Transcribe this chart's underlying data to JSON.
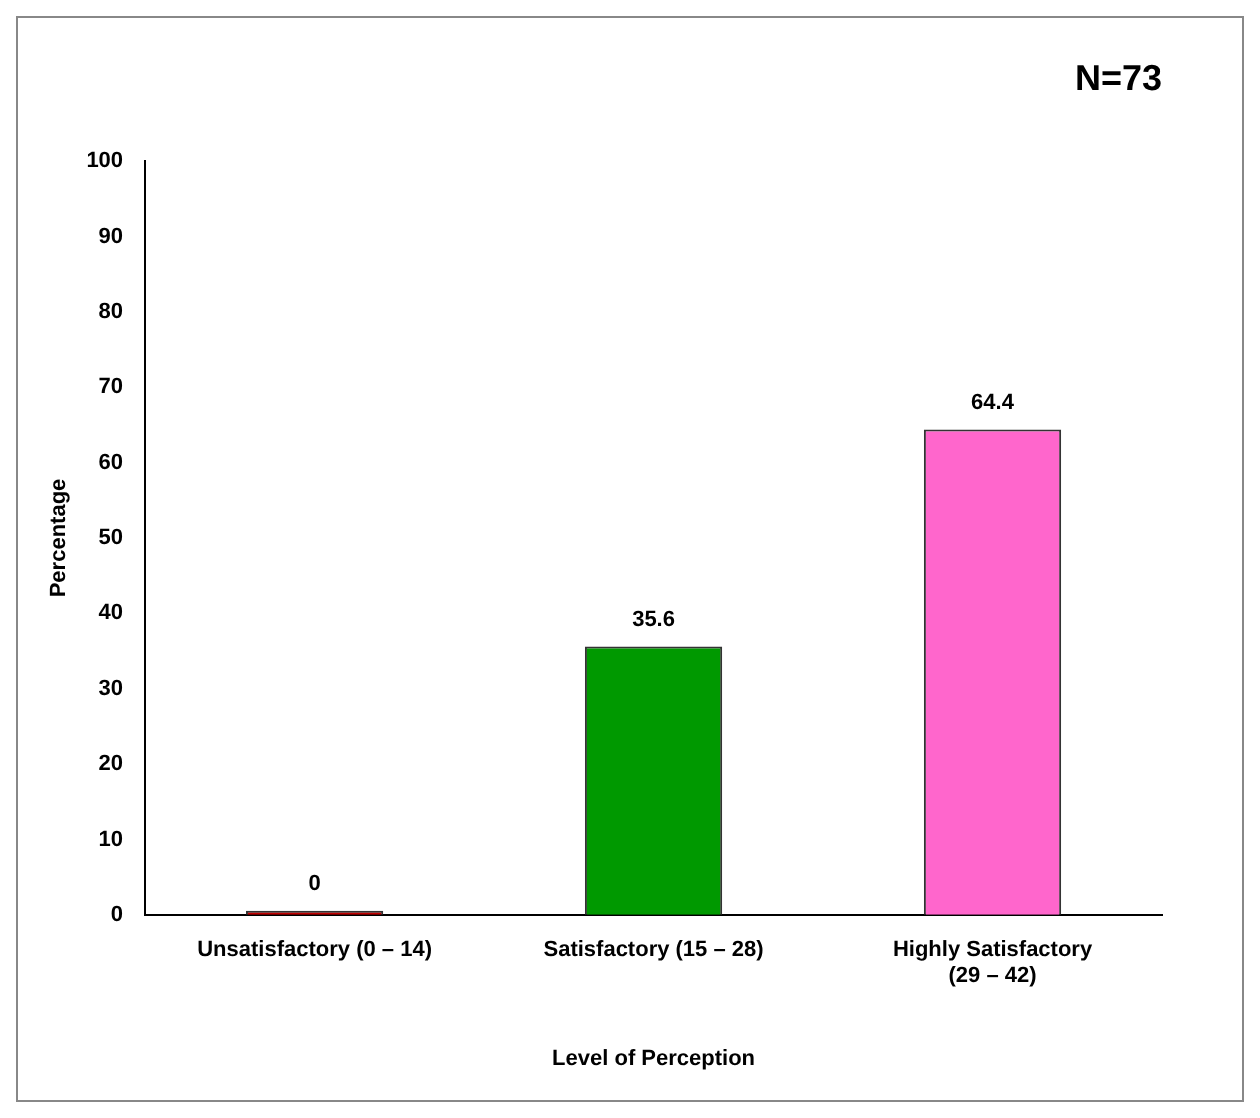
{
  "chart_data": {
    "type": "bar",
    "title": "N=73",
    "xlabel": "Level of Perception",
    "ylabel": "Percentage",
    "categories": [
      "Unsatisfactory (0 – 14)",
      "Satisfactory (15 – 28)",
      "Highly Satisfactory (29 – 42)"
    ],
    "values": [
      0,
      35.6,
      64.4
    ],
    "colors": [
      "#c00000",
      "#009900",
      "#ff66cc"
    ],
    "ylim": [
      0,
      100
    ],
    "yticks": [
      0,
      10,
      20,
      30,
      40,
      50,
      60,
      70,
      80,
      90,
      100
    ],
    "grid": false,
    "legend": false,
    "data_labels": true
  }
}
